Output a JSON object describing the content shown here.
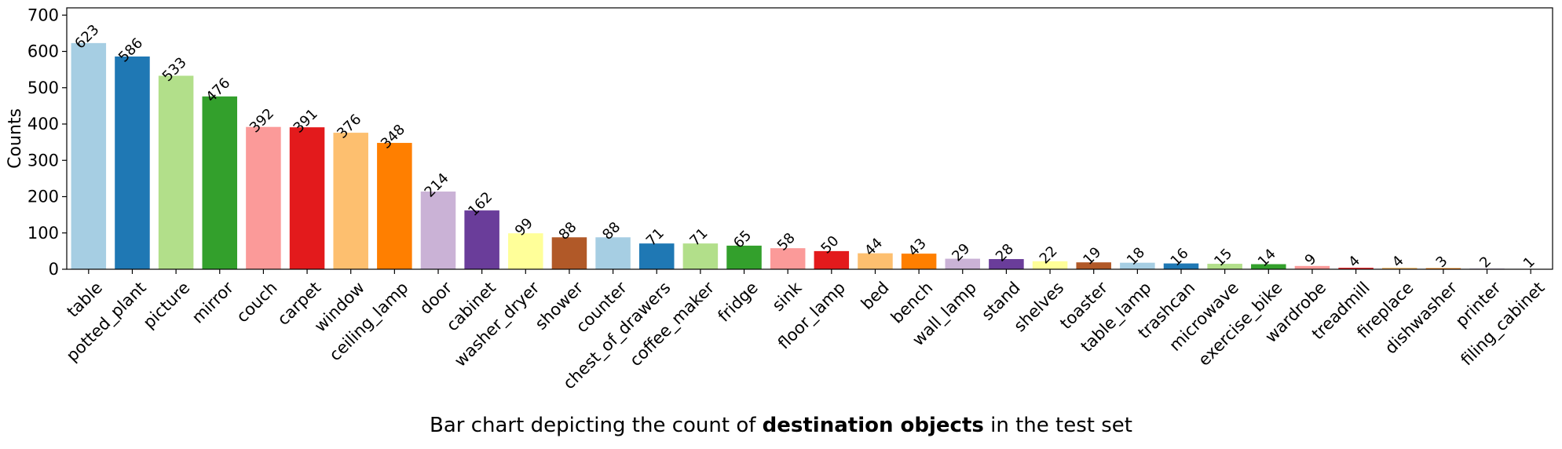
{
  "caption": {
    "prefix": "Bar chart depicting the count of ",
    "bold": "destination objects",
    "suffix": " in the test set"
  },
  "chart_data": {
    "type": "bar",
    "ylabel": "Counts",
    "xlabel": "",
    "ylim": [
      0,
      720
    ],
    "yticks": [
      0,
      100,
      200,
      300,
      400,
      500,
      600,
      700
    ],
    "grid": false,
    "categories": [
      "table",
      "potted_plant",
      "picture",
      "mirror",
      "couch",
      "carpet",
      "window",
      "ceiling_lamp",
      "door",
      "cabinet",
      "washer_dryer",
      "shower",
      "counter",
      "chest_of_drawers",
      "coffee_maker",
      "fridge",
      "sink",
      "floor_lamp",
      "bed",
      "bench",
      "wall_lamp",
      "stand",
      "shelves",
      "toaster",
      "table_lamp",
      "trashcan",
      "microwave",
      "exercise_bike",
      "wardrobe",
      "treadmill",
      "fireplace",
      "dishwasher",
      "printer",
      "filing_cabinet"
    ],
    "values": [
      623,
      586,
      533,
      476,
      392,
      391,
      376,
      348,
      214,
      162,
      99,
      88,
      88,
      71,
      71,
      65,
      58,
      50,
      44,
      43,
      29,
      28,
      22,
      19,
      18,
      16,
      15,
      14,
      9,
      4,
      4,
      3,
      2,
      1
    ],
    "colors": [
      "#a6cee3",
      "#1f78b4",
      "#b2df8a",
      "#33a02c",
      "#fb9a99",
      "#e31a1c",
      "#fdbf6f",
      "#ff7f00",
      "#cab2d6",
      "#6a3d9a",
      "#ffff99",
      "#b15928"
    ]
  }
}
